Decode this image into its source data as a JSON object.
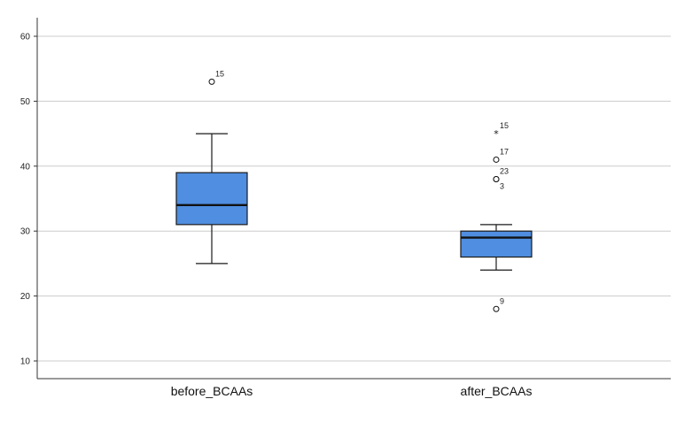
{
  "chart_data": {
    "type": "boxplot",
    "title": "",
    "xlabel": "",
    "ylabel": "",
    "ylim": [
      7,
      63
    ],
    "yticks": [
      10,
      20,
      30,
      40,
      50,
      60
    ],
    "grid": true,
    "categories": [
      "before_BCAAs",
      "after_BCAAs"
    ],
    "boxes": [
      {
        "category": "before_BCAAs",
        "whisker_low": 25,
        "q1": 31,
        "median": 34,
        "q3": 39,
        "whisker_high": 45,
        "outliers": [
          {
            "value": 53,
            "label": "15",
            "marker": "circle"
          }
        ]
      },
      {
        "category": "after_BCAAs",
        "whisker_low": 24,
        "q1": 26,
        "median": 29,
        "q3": 30,
        "whisker_high": 31,
        "outliers": [
          {
            "value": 45,
            "label": "15",
            "marker": "star"
          },
          {
            "value": 41,
            "label": "17",
            "marker": "circle"
          },
          {
            "value": 38,
            "label": "23",
            "marker": "circle"
          },
          {
            "value": 38,
            "label": "3",
            "marker": "circle"
          },
          {
            "value": 18,
            "label": "9",
            "marker": "circle"
          }
        ]
      }
    ],
    "colors": {
      "box_fill": "#4f8ee0",
      "box_stroke": "#1a1a1a",
      "grid": "#cccccc",
      "axis": "#333333"
    }
  }
}
